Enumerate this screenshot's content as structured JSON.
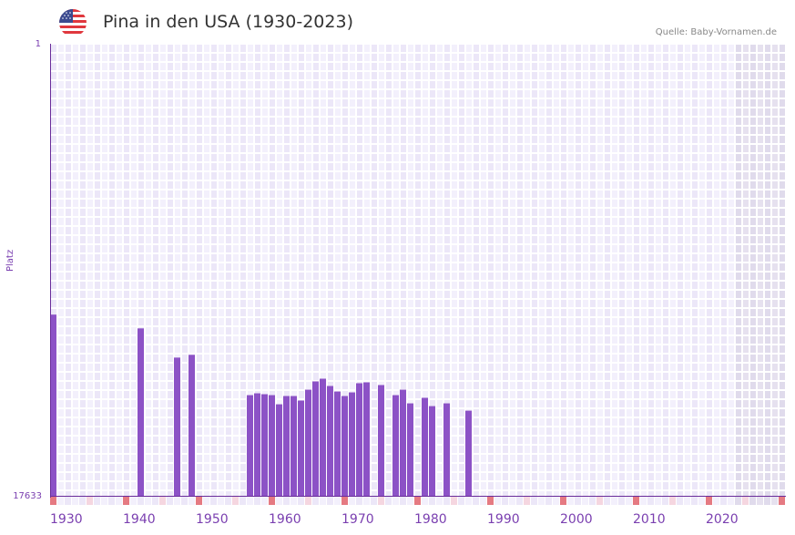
{
  "header": {
    "title": "Pina in den USA (1930-2023)",
    "source": "Quelle: Baby-Vornamen.de",
    "flag_icon": "us-flag-icon"
  },
  "colors": {
    "bar": "#8c52c6",
    "axis": "#6a2d9a",
    "label": "#7a3fb0",
    "grid_light": "#f3f0fc",
    "grid_dark": "#ece7f8",
    "future_shade": "#e2dced",
    "decade_marker": "#e57a82",
    "half_decade_marker": "#f5d6e0"
  },
  "chart_data": {
    "type": "bar",
    "title": "Pina in den USA (1930-2023)",
    "xlabel": "",
    "ylabel": "Platz",
    "y_scale": "log, inverted (rank 1 at top)",
    "ylim": [
      17633,
      1
    ],
    "y_ticks": [
      "1",
      "17633"
    ],
    "x_range": [
      1930,
      2030
    ],
    "x_ticks": [
      "1930",
      "1940",
      "1950",
      "1960",
      "1970",
      "1980",
      "1990",
      "2000",
      "2010",
      "2020"
    ],
    "grid": true,
    "future_shaded_from": 2024,
    "x": [
      1930,
      1942,
      1947,
      1949,
      1957,
      1958,
      1959,
      1960,
      1961,
      1962,
      1963,
      1964,
      1965,
      1966,
      1967,
      1968,
      1969,
      1970,
      1971,
      1972,
      1973,
      1975,
      1977,
      1978,
      1979,
      1981,
      1982,
      1984,
      1987
    ],
    "values": [
      346,
      466,
      875,
      824,
      1968,
      1892,
      1929,
      1968,
      2398,
      2006,
      2006,
      2213,
      1749,
      1463,
      1380,
      1615,
      1820,
      2006,
      1855,
      1522,
      1493,
      1583,
      1968,
      1749,
      2350,
      2085,
      2494,
      2350,
      2752
    ]
  }
}
